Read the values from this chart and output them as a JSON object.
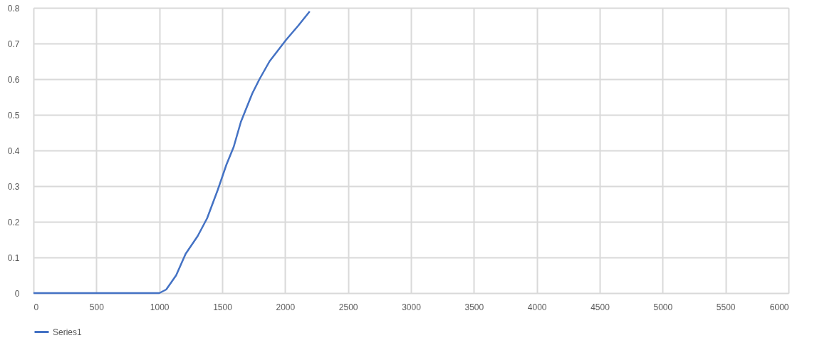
{
  "chart_data": {
    "type": "line",
    "x": [
      0,
      1000,
      1055,
      1134,
      1209,
      1305,
      1380,
      1465,
      1533,
      1591,
      1648,
      1682,
      1739,
      1796,
      1876,
      2007,
      2104,
      2195
    ],
    "series": [
      {
        "name": "Series1",
        "color": "#4472c4",
        "values": [
          0,
          0,
          0.01,
          0.05,
          0.11,
          0.16,
          0.21,
          0.29,
          0.36,
          0.41,
          0.48,
          0.51,
          0.56,
          0.6,
          0.65,
          0.71,
          0.75,
          0.79
        ]
      }
    ],
    "xlim": [
      0,
      6000
    ],
    "xticks": [
      0,
      500,
      1000,
      1500,
      2000,
      2500,
      3000,
      3500,
      4000,
      4500,
      5000,
      5500,
      6000
    ],
    "ylim": [
      0,
      0.8
    ],
    "yticks": [
      0,
      0.1,
      0.2,
      0.3,
      0.4,
      0.5,
      0.6,
      0.7,
      0.8
    ],
    "grid": true,
    "legend": "bottom",
    "marker": "none",
    "line_style": "solid"
  }
}
